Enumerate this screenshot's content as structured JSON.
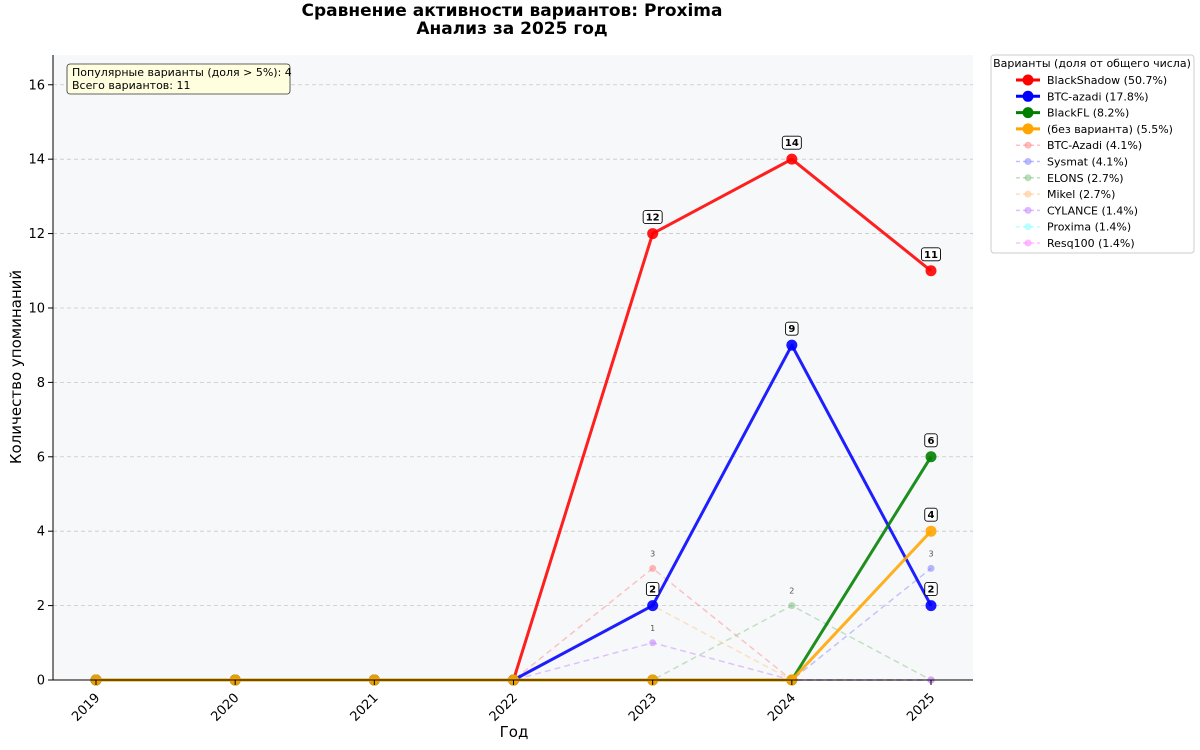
{
  "chart_data": {
    "type": "line",
    "title": "Сравнение активности вариантов: Proxima",
    "subtitle": "Анализ за 2025 год",
    "xlabel": "Год",
    "ylabel": "Количество упоминаний",
    "ylim": [
      0,
      16.8
    ],
    "yticks": [
      0,
      2,
      4,
      6,
      8,
      10,
      12,
      14,
      16
    ],
    "grid": "horizontal dashed",
    "categories": [
      "2019",
      "2020",
      "2021",
      "2022",
      "2023",
      "2024",
      "2025"
    ],
    "legend_title": "Варианты (доля от общего числа)",
    "legend_placement": "outside-top-right",
    "info_box": {
      "line1": "Популярные варианты (доля > 5%): 4",
      "line2": "Всего вариантов: 11"
    },
    "series": [
      {
        "name": "BlackShadow (50.7%)",
        "values": [
          0,
          0,
          0,
          0,
          12,
          14,
          11
        ],
        "color": "#ff0000",
        "major": true,
        "labels": [
          null,
          null,
          null,
          null,
          "12",
          "14",
          "11"
        ]
      },
      {
        "name": "BTC-azadi (17.8%)",
        "values": [
          0,
          0,
          0,
          0,
          2,
          9,
          2
        ],
        "color": "#0000ff",
        "major": true,
        "labels": [
          null,
          null,
          null,
          null,
          "2",
          "9",
          "2"
        ]
      },
      {
        "name": "BlackFL (8.2%)",
        "values": [
          0,
          0,
          0,
          0,
          0,
          0,
          6
        ],
        "color": "#008000",
        "major": true,
        "labels": [
          null,
          null,
          null,
          null,
          null,
          null,
          "6"
        ]
      },
      {
        "name": "(без варианта) (5.5%)",
        "values": [
          0,
          0,
          0,
          0,
          0,
          0,
          4
        ],
        "color": "#ffa500",
        "major": true,
        "labels": [
          null,
          null,
          null,
          null,
          null,
          null,
          "4"
        ]
      },
      {
        "name": "BTC-Azadi (4.1%)",
        "values": [
          0,
          0,
          0,
          0,
          3,
          0,
          0
        ],
        "color": "#ff8080",
        "major": false,
        "labels": [
          null,
          null,
          null,
          null,
          "3",
          null,
          null
        ]
      },
      {
        "name": "Sysmat (4.1%)",
        "values": [
          0,
          0,
          0,
          0,
          0,
          0,
          3
        ],
        "color": "#8080ff",
        "major": false,
        "labels": [
          null,
          null,
          null,
          null,
          null,
          null,
          "3"
        ]
      },
      {
        "name": "ELONS (2.7%)",
        "values": [
          0,
          0,
          0,
          0,
          0,
          2,
          0
        ],
        "color": "#80c080",
        "major": false,
        "labels": [
          null,
          null,
          null,
          null,
          null,
          "2",
          null
        ]
      },
      {
        "name": "Mikel (2.7%)",
        "values": [
          0,
          0,
          0,
          0,
          2,
          0,
          0
        ],
        "color": "#ffc080",
        "major": false,
        "labels": [
          null,
          null,
          null,
          null,
          null,
          null,
          null
        ]
      },
      {
        "name": "CYLANCE (1.4%)",
        "values": [
          0,
          0,
          0,
          0,
          1,
          0,
          0
        ],
        "color": "#c080ff",
        "major": false,
        "labels": [
          null,
          null,
          null,
          null,
          "1",
          null,
          null
        ]
      },
      {
        "name": "Proxima (1.4%)",
        "values": [
          0,
          0,
          0,
          0,
          0,
          0,
          0
        ],
        "color": "#80ffff",
        "major": false,
        "labels": [
          null,
          null,
          null,
          null,
          null,
          null,
          null
        ]
      },
      {
        "name": "Resq100 (1.4%)",
        "values": [
          0,
          0,
          0,
          0,
          0,
          0,
          0
        ],
        "color": "#ff80ff",
        "major": false,
        "labels": [
          null,
          null,
          null,
          null,
          null,
          null,
          null
        ]
      }
    ]
  }
}
